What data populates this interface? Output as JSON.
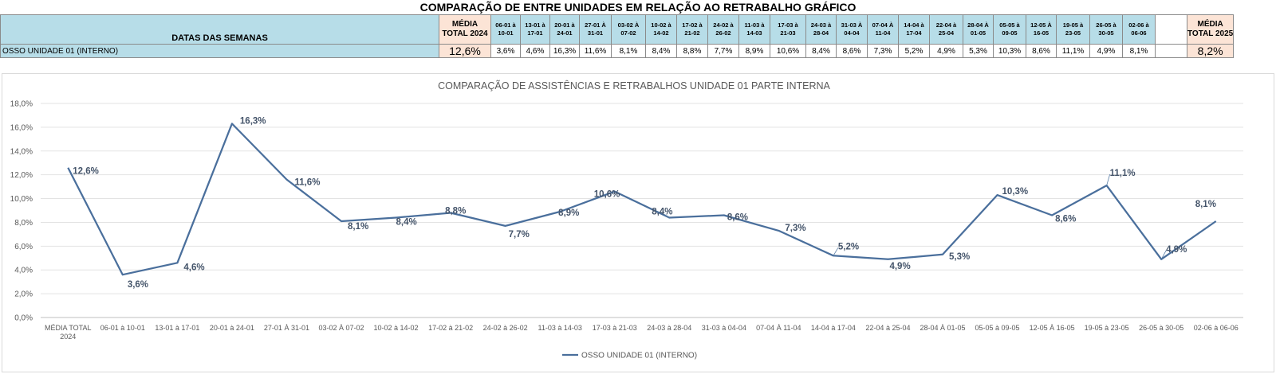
{
  "page": {
    "title": "COMPARAÇÃO DE ENTRE UNIDADES EM RELAÇÃO AO RETRABALHO GRÁFICO"
  },
  "table": {
    "header_label": "DATAS DAS SEMANAS",
    "avg_2024_header": [
      "MÉDIA",
      "TOTAL 2024"
    ],
    "avg_2025_header": [
      "MÉDIA",
      "TOTAL 2025"
    ],
    "weeks": [
      [
        "06-01 à",
        "10-01"
      ],
      [
        "13-01 à",
        "17-01"
      ],
      [
        "20-01 à",
        "24-01"
      ],
      [
        "27-01 À",
        "31-01"
      ],
      [
        "03-02 À",
        "07-02"
      ],
      [
        "10-02 à",
        "14-02"
      ],
      [
        "17-02 à",
        "21-02"
      ],
      [
        "24-02 à",
        "26-02"
      ],
      [
        "11-03 à",
        "14-03"
      ],
      [
        "17-03 à",
        "21-03"
      ],
      [
        "24-03 à",
        "28-04"
      ],
      [
        "31-03 À",
        "04-04"
      ],
      [
        "07-04 À",
        "11-04"
      ],
      [
        "14-04 à",
        "17-04"
      ],
      [
        "22-04 à",
        "25-04"
      ],
      [
        "28-04 À",
        "01-05"
      ],
      [
        "05-05 à",
        "09-05"
      ],
      [
        "12-05 À",
        "16-05"
      ],
      [
        "19-05 à",
        "23-05"
      ],
      [
        "26-05 à",
        "30-05"
      ],
      [
        "02-06 à",
        "06-06"
      ],
      [
        "",
        ""
      ]
    ],
    "row_label": "OSSO UNIDADE 01 (INTERNO)",
    "avg_2024_value": "12,6%",
    "values": [
      "3,6%",
      "4,6%",
      "16,3%",
      "11,6%",
      "8,1%",
      "8,4%",
      "8,8%",
      "7,7%",
      "8,9%",
      "10,6%",
      "8,4%",
      "8,6%",
      "7,3%",
      "5,2%",
      "4,9%",
      "5,3%",
      "10,3%",
      "8,6%",
      "11,1%",
      "4,9%",
      "8,1%",
      ""
    ],
    "avg_2025_value": "8,2%"
  },
  "chart_data": {
    "type": "line",
    "title": "COMPARAÇÃO DE ASSISTÊNCIAS E RETRABALHOS UNIDADE 01 PARTE INTERNA",
    "categories": [
      "MÉDIA TOTAL 2024",
      "06-01 à 10-01",
      "13-01 à 17-01",
      "20-01 à 24-01",
      "27-01 À 31-01",
      "03-02 À 07-02",
      "10-02 à 14-02",
      "17-02 à 21-02",
      "24-02 à 26-02",
      "11-03 à 14-03",
      "17-03 à 21-03",
      "24-03 à 28-04",
      "31-03 à 04-04",
      "07-04 À 11-04",
      "14-04 à 17-04",
      "22-04 à 25-04",
      "28-04 À 01-05",
      "05-05 à 09-05",
      "12-05 À 16-05",
      "19-05 à 23-05",
      "26-05 à 30-05",
      "02-06 à 06-06"
    ],
    "series": [
      {
        "name": "OSSO UNIDADE 01 (INTERNO)",
        "values": [
          12.6,
          3.6,
          4.6,
          16.3,
          11.6,
          8.1,
          8.4,
          8.8,
          7.7,
          8.9,
          10.6,
          8.4,
          8.6,
          7.3,
          5.2,
          4.9,
          5.3,
          10.3,
          8.6,
          11.1,
          4.9,
          8.1
        ],
        "labels": [
          "12,6%",
          "3,6%",
          "4,6%",
          "16,3%",
          "11,6%",
          "8,1%",
          "8,4%",
          "8,8%",
          "7,7%",
          "8,9%",
          "10,6%",
          "8,4%",
          "8,6%",
          "7,3%",
          "5,2%",
          "4,9%",
          "5,3%",
          "10,3%",
          "8,6%",
          "11,1%",
          "4,9%",
          "8,1%"
        ]
      }
    ],
    "ylim": [
      0,
      18
    ],
    "yticks": [
      "0,0%",
      "2,0%",
      "4,0%",
      "6,0%",
      "8,0%",
      "10,0%",
      "12,0%",
      "14,0%",
      "16,0%",
      "18,0%"
    ],
    "grid": true,
    "legend": "bottom",
    "line_color": "#4a6f9c"
  }
}
